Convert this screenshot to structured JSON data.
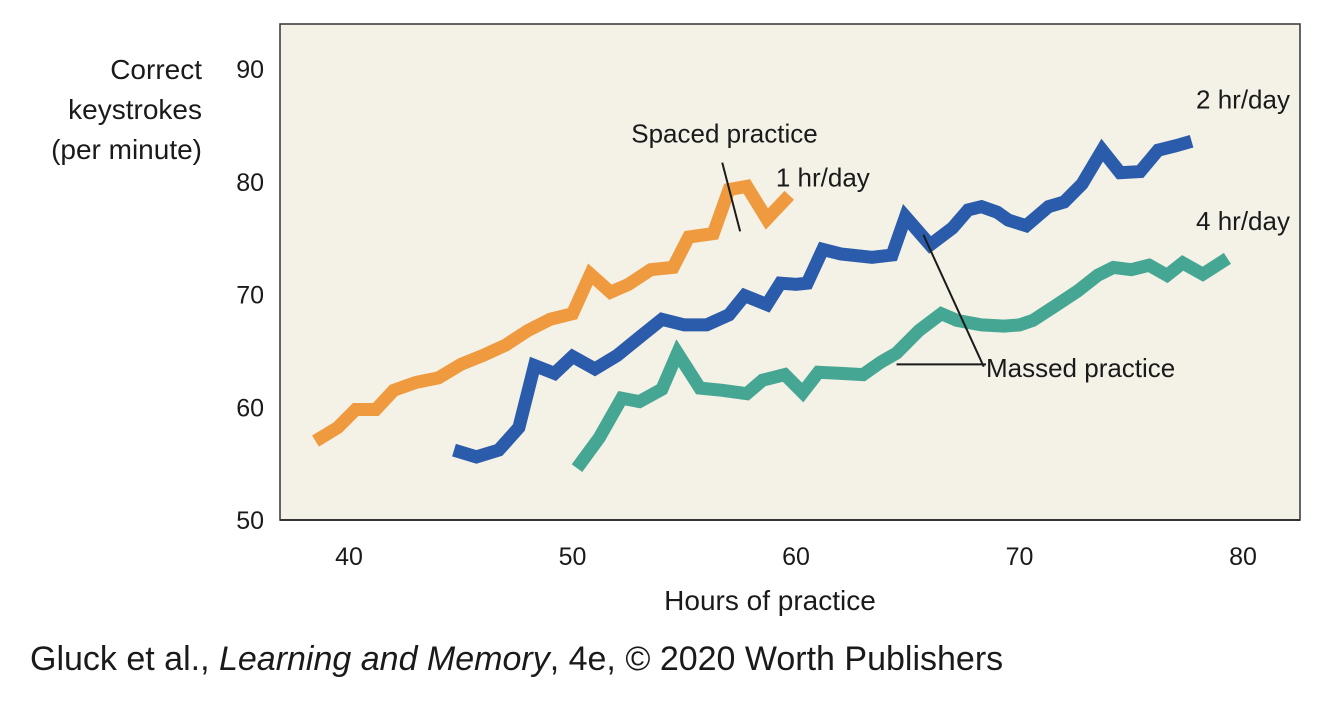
{
  "chart_data": {
    "type": "line",
    "xlabel": "Hours of practice",
    "ylabel_lines": [
      "Correct",
      "keystrokes",
      "(per minute)"
    ],
    "xlim": [
      37,
      83
    ],
    "ylim": [
      50,
      94
    ],
    "x_ticks": [
      40,
      50,
      60,
      70,
      80
    ],
    "y_ticks": [
      50,
      60,
      70,
      80,
      90
    ],
    "grid": false,
    "background": "#f4f1e6",
    "series": [
      {
        "name": "1 hr/day",
        "color": "#ef9a3f",
        "points": [
          [
            38.5,
            57
          ],
          [
            39.5,
            58.2
          ],
          [
            40.3,
            59.8
          ],
          [
            41.2,
            59.8
          ],
          [
            42,
            61.5
          ],
          [
            43,
            62.2
          ],
          [
            44,
            62.6
          ],
          [
            45,
            63.8
          ],
          [
            46,
            64.6
          ],
          [
            47,
            65.5
          ],
          [
            48,
            66.8
          ],
          [
            49,
            67.8
          ],
          [
            50,
            68.3
          ],
          [
            50.8,
            71.8
          ],
          [
            51.7,
            70.2
          ],
          [
            52.5,
            70.9
          ],
          [
            53.5,
            72.2
          ],
          [
            54.5,
            72.4
          ],
          [
            55.2,
            75.1
          ],
          [
            56.3,
            75.4
          ],
          [
            57,
            79.3
          ],
          [
            57.8,
            79.6
          ],
          [
            58.7,
            76.7
          ],
          [
            59.7,
            78.8
          ]
        ]
      },
      {
        "name": "2 hr/day",
        "color": "#2a5cab",
        "points": [
          [
            44.7,
            56.2
          ],
          [
            45.7,
            55.6
          ],
          [
            46.7,
            56.2
          ],
          [
            47.6,
            58.2
          ],
          [
            48.3,
            63.7
          ],
          [
            49.2,
            63
          ],
          [
            50,
            64.5
          ],
          [
            51,
            63.4
          ],
          [
            52,
            64.6
          ],
          [
            53,
            66.2
          ],
          [
            54,
            67.8
          ],
          [
            55,
            67.3
          ],
          [
            56,
            67.3
          ],
          [
            57,
            68.2
          ],
          [
            57.7,
            69.9
          ],
          [
            58.7,
            69.1
          ],
          [
            59.3,
            71
          ],
          [
            60,
            70.9
          ],
          [
            60.5,
            71
          ],
          [
            61.2,
            74
          ],
          [
            62,
            73.6
          ],
          [
            63.4,
            73.3
          ],
          [
            64.3,
            73.5
          ],
          [
            64.9,
            76.9
          ],
          [
            66,
            74.4
          ],
          [
            67,
            75.9
          ],
          [
            67.7,
            77.5
          ],
          [
            68.3,
            77.8
          ],
          [
            69,
            77.3
          ],
          [
            69.5,
            76.6
          ],
          [
            70.3,
            76.1
          ],
          [
            71.3,
            77.8
          ],
          [
            72,
            78.2
          ],
          [
            72.8,
            79.8
          ],
          [
            73.7,
            82.8
          ],
          [
            74.5,
            80.8
          ],
          [
            75.4,
            80.9
          ],
          [
            76.2,
            82.8
          ],
          [
            77,
            83.2
          ],
          [
            77.7,
            83.6
          ]
        ]
      },
      {
        "name": "4 hr/day",
        "color": "#45a693",
        "points": [
          [
            50.2,
            54.6
          ],
          [
            51.2,
            57.3
          ],
          [
            52.2,
            60.8
          ],
          [
            53,
            60.5
          ],
          [
            54,
            61.6
          ],
          [
            54.7,
            64.8
          ],
          [
            55.7,
            61.7
          ],
          [
            56.7,
            61.5
          ],
          [
            57.8,
            61.2
          ],
          [
            58.5,
            62.4
          ],
          [
            59.5,
            62.9
          ],
          [
            60.3,
            61.3
          ],
          [
            61,
            63.1
          ],
          [
            62,
            63
          ],
          [
            63,
            62.9
          ],
          [
            63.8,
            64
          ],
          [
            64.5,
            64.8
          ],
          [
            65.5,
            66.8
          ],
          [
            66.5,
            68.3
          ],
          [
            67.2,
            67.7
          ],
          [
            68.3,
            67.3
          ],
          [
            69.3,
            67.2
          ],
          [
            70,
            67.3
          ],
          [
            70.6,
            67.7
          ],
          [
            71.6,
            69
          ],
          [
            72.6,
            70.3
          ],
          [
            73.5,
            71.7
          ],
          [
            74.2,
            72.4
          ],
          [
            75,
            72.2
          ],
          [
            75.8,
            72.6
          ],
          [
            76.6,
            71.7
          ],
          [
            77.3,
            72.8
          ],
          [
            78.2,
            71.8
          ],
          [
            79.3,
            73.2
          ]
        ]
      }
    ],
    "annotations": [
      {
        "text": "Spaced practice",
        "x": 56.8,
        "y": 83.5,
        "anchor": "middle",
        "pointer": [
          [
            56.7,
            81.7
          ],
          [
            57.5,
            75.6
          ]
        ]
      },
      {
        "text": "1 hr/day",
        "x": 61.2,
        "y": 79.6,
        "anchor": "middle",
        "pointer": null
      },
      {
        "text": "2 hr/day",
        "x": 80,
        "y": 86.5,
        "anchor": "middle",
        "pointer": null
      },
      {
        "text": "4 hr/day",
        "x": 80,
        "y": 75.7,
        "anchor": "middle",
        "pointer": null
      },
      {
        "text": "Massed practice",
        "x": 68.5,
        "y": 62.7,
        "anchor": "start",
        "pointer": [
          [
            68.5,
            63.8
          ],
          [
            64.5,
            63.8
          ],
          [
            68.4,
            63.6
          ],
          [
            65.7,
            75.3
          ]
        ]
      }
    ]
  },
  "credit": {
    "before": "Gluck et al., ",
    "title": "Learning and Memory",
    "after": ", 4e, © 2020 Worth Publishers"
  }
}
